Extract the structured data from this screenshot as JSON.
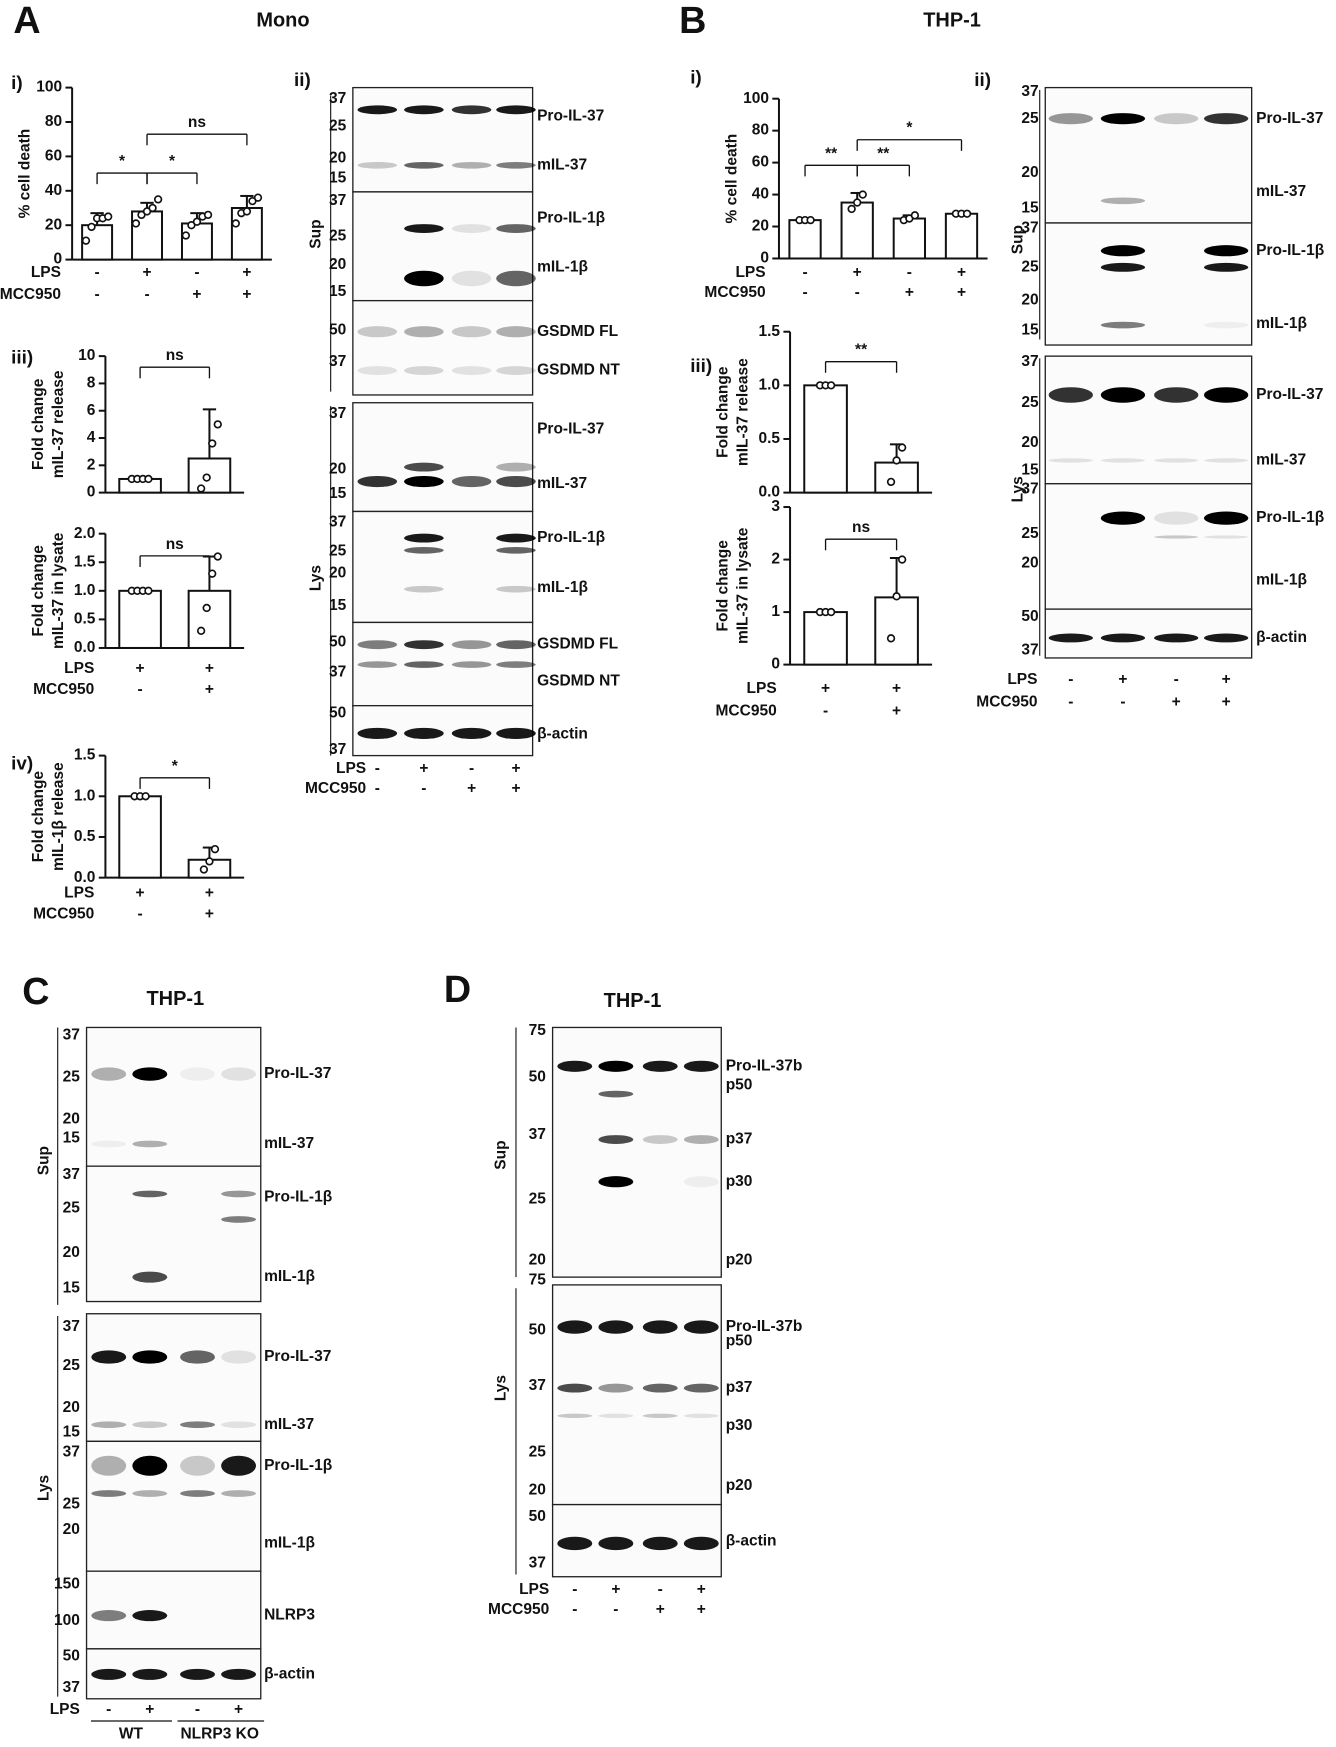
{
  "panel_labels": [
    "A",
    "B",
    "C",
    "D"
  ],
  "panel_titles": [
    "Mono",
    "THP-1",
    "THP-1",
    "THP-1"
  ],
  "sub_labels": [
    "i)",
    "ii)",
    "iii)",
    "iv)",
    "i)",
    "ii)",
    "iii)"
  ],
  "chart_data": [
    {
      "type": "bar",
      "ylabel": [
        "% cell death"
      ],
      "values": [
        20,
        28,
        21,
        30
      ],
      "errors": [
        7,
        5,
        6,
        7
      ],
      "points": [
        [
          11,
          19,
          24,
          24,
          25
        ],
        [
          21,
          26,
          28,
          30,
          35
        ],
        [
          14,
          20,
          22,
          25,
          26
        ],
        [
          21,
          27,
          28,
          34,
          36
        ]
      ],
      "ylim": [
        0,
        100
      ],
      "yticks": [
        0,
        20,
        40,
        60,
        80,
        100
      ],
      "annotations": [
        "*",
        "*",
        "ns"
      ],
      "conditions": [
        {
          "name": "LPS",
          "signs": [
            "-",
            "+",
            "-",
            "+"
          ]
        },
        {
          "name": "MCC950",
          "signs": [
            "-",
            "-",
            "+",
            "+"
          ]
        }
      ]
    },
    {
      "type": "bar",
      "ylabel": [
        "Fold change",
        "mIL-37 release"
      ],
      "values": [
        1,
        2.5
      ],
      "errors": [
        0,
        3.6
      ],
      "points": [
        [
          1,
          1,
          1,
          1
        ],
        [
          0.3,
          1.1,
          3.6,
          5.0
        ]
      ],
      "ylim": [
        0,
        10
      ],
      "yticks": [
        0,
        2,
        4,
        6,
        8,
        10
      ],
      "annotations": [
        "ns"
      ]
    },
    {
      "type": "bar",
      "ylabel": [
        "Fold change",
        "mIL-37 in  lysate"
      ],
      "values": [
        1,
        1
      ],
      "errors": [
        0,
        0.6
      ],
      "points": [
        [
          1,
          1,
          1,
          1
        ],
        [
          0.3,
          0.7,
          1.3,
          1.6
        ]
      ],
      "ylim": [
        0,
        2
      ],
      "yticks": [
        {
          "value": 0,
          "label": "0.0"
        },
        0.5,
        {
          "value": 1,
          "label": "1.0"
        },
        1.5,
        {
          "value": 2,
          "label": "2.0"
        }
      ],
      "annotations": [
        "ns"
      ],
      "conditions": [
        {
          "name": "LPS",
          "signs": [
            "+",
            "+"
          ]
        },
        {
          "name": "MCC950",
          "signs": [
            "-",
            "+"
          ]
        }
      ]
    },
    {
      "type": "bar",
      "ylabel": [
        "Fold change",
        "mIL-1β release"
      ],
      "values": [
        1,
        0.22
      ],
      "errors": [
        0,
        0.15
      ],
      "points": [
        [
          1,
          1,
          1
        ],
        [
          0.1,
          0.2,
          0.35
        ]
      ],
      "ylim": [
        0,
        1.5
      ],
      "yticks": [
        {
          "value": 0,
          "label": "0.0"
        },
        0.5,
        {
          "value": 1,
          "label": "1.0"
        },
        1.5
      ],
      "annotations": [
        "*"
      ],
      "conditions": [
        {
          "name": "LPS",
          "signs": [
            "+",
            "+"
          ]
        },
        {
          "name": "MCC950",
          "signs": [
            "-",
            "+"
          ]
        }
      ]
    },
    {
      "type": "bar",
      "ylabel": [
        "% cell death"
      ],
      "values": [
        24,
        35,
        25,
        28
      ],
      "errors": [
        1,
        6,
        2,
        1
      ],
      "points": [
        [
          24,
          24,
          24
        ],
        [
          31,
          35,
          40
        ],
        [
          24,
          25,
          27
        ],
        [
          28,
          28,
          28
        ]
      ],
      "ylim": [
        0,
        100
      ],
      "yticks": [
        0,
        20,
        40,
        60,
        80,
        100
      ],
      "annotations": [
        "**",
        "**",
        "*"
      ],
      "conditions": [
        {
          "name": "LPS",
          "signs": [
            "-",
            "+",
            "-",
            "+"
          ]
        },
        {
          "name": "MCC950",
          "signs": [
            "-",
            "-",
            "+",
            "+"
          ]
        }
      ]
    },
    {
      "type": "bar",
      "ylabel": [
        "Fold change",
        "mIL-37 release"
      ],
      "values": [
        1,
        0.28
      ],
      "errors": [
        0,
        0.17
      ],
      "points": [
        [
          1,
          1,
          1
        ],
        [
          0.1,
          0.3,
          0.42
        ]
      ],
      "ylim": [
        0,
        1.5
      ],
      "yticks": [
        {
          "value": 0,
          "label": "0.0"
        },
        0.5,
        {
          "value": 1,
          "label": "1.0"
        },
        1.5
      ],
      "annotations": [
        "**"
      ]
    },
    {
      "type": "bar",
      "ylabel": [
        "Fold change",
        "mIL-37 in lysate"
      ],
      "values": [
        1,
        1.28
      ],
      "errors": [
        0,
        0.75
      ],
      "points": [
        [
          1,
          1,
          1
        ],
        [
          0.5,
          1.3,
          2.0
        ]
      ],
      "ylim": [
        0,
        3
      ],
      "yticks": [
        0,
        1,
        2,
        3
      ],
      "annotations": [
        "ns"
      ],
      "conditions": [
        {
          "name": "LPS",
          "signs": [
            "+",
            "+"
          ]
        },
        {
          "name": "MCC950",
          "signs": [
            "-",
            "+"
          ]
        }
      ]
    }
  ],
  "blots": [
    {
      "markers": [
        37,
        25,
        20,
        15,
        37,
        25,
        20,
        15,
        50,
        37,
        37,
        20,
        15,
        37,
        25,
        20,
        15,
        50,
        37,
        50,
        37
      ],
      "labels": [
        "Pro-IL-37",
        "mIL-37",
        "Pro-IL-1β",
        "mIL-1β",
        "GSDMD FL",
        "GSDMD NT",
        "Pro-IL-37",
        "mIL-37",
        "Pro-IL-1β",
        "mIL-1β",
        "GSDMD FL",
        "GSDMD NT",
        "β-actin"
      ],
      "fractions": [
        "Sup",
        "Lys"
      ],
      "conditions": [
        {
          "name": "LPS",
          "signs": [
            "-",
            "+",
            "-",
            "+"
          ]
        },
        {
          "name": "MCC950",
          "signs": [
            "-",
            "-",
            "+",
            "+"
          ]
        }
      ]
    },
    {
      "markers": [
        37,
        25,
        20,
        15,
        37,
        25,
        20,
        15,
        37,
        25,
        20,
        15,
        37,
        25,
        20,
        50,
        37
      ],
      "labels": [
        "Pro-IL-37",
        "mIL-37",
        "Pro-IL-1β",
        "mIL-1β",
        "Pro-IL-37",
        "mIL-37",
        "Pro-IL-1β",
        "mIL-1β",
        "β-actin"
      ],
      "fractions": [
        "Sup",
        "Lys"
      ],
      "conditions": [
        {
          "name": "LPS",
          "signs": [
            "-",
            "+",
            "-",
            "+"
          ]
        },
        {
          "name": "MCC950",
          "signs": [
            "-",
            "-",
            "+",
            "+"
          ]
        }
      ]
    },
    {
      "markers": [
        37,
        25,
        20,
        15,
        37,
        25,
        20,
        15,
        37,
        25,
        20,
        15,
        37,
        25,
        20,
        150,
        100,
        50,
        37
      ],
      "labels": [
        "Pro-IL-37",
        "mIL-37",
        "Pro-IL-1β",
        "mIL-1β",
        "Pro-IL-37",
        "mIL-37",
        "Pro-IL-1β",
        "mIL-1β",
        "NLRP3",
        "β-actin"
      ],
      "fractions": [
        "Sup",
        "Lys"
      ],
      "conditions": [
        {
          "name": "LPS",
          "signs": [
            "-",
            "+",
            "-",
            "+"
          ]
        }
      ],
      "groups": [
        "WT",
        "NLRP3 KO"
      ]
    },
    {
      "markers": [
        75,
        50,
        37,
        25,
        20,
        75,
        50,
        37,
        25,
        20,
        50,
        37
      ],
      "labels": [
        "Pro-IL-37b",
        "p50",
        "p37",
        "p30",
        "p20",
        "Pro-IL-37b",
        "p50",
        "p37",
        "p30",
        "p20",
        "β-actin"
      ],
      "fractions": [
        "Sup",
        "Lys"
      ],
      "conditions": [
        {
          "name": "LPS",
          "signs": [
            "-",
            "+",
            "-",
            "+"
          ]
        },
        {
          "name": "MCC950",
          "signs": [
            "-",
            "-",
            "+",
            "+"
          ]
        }
      ]
    }
  ]
}
